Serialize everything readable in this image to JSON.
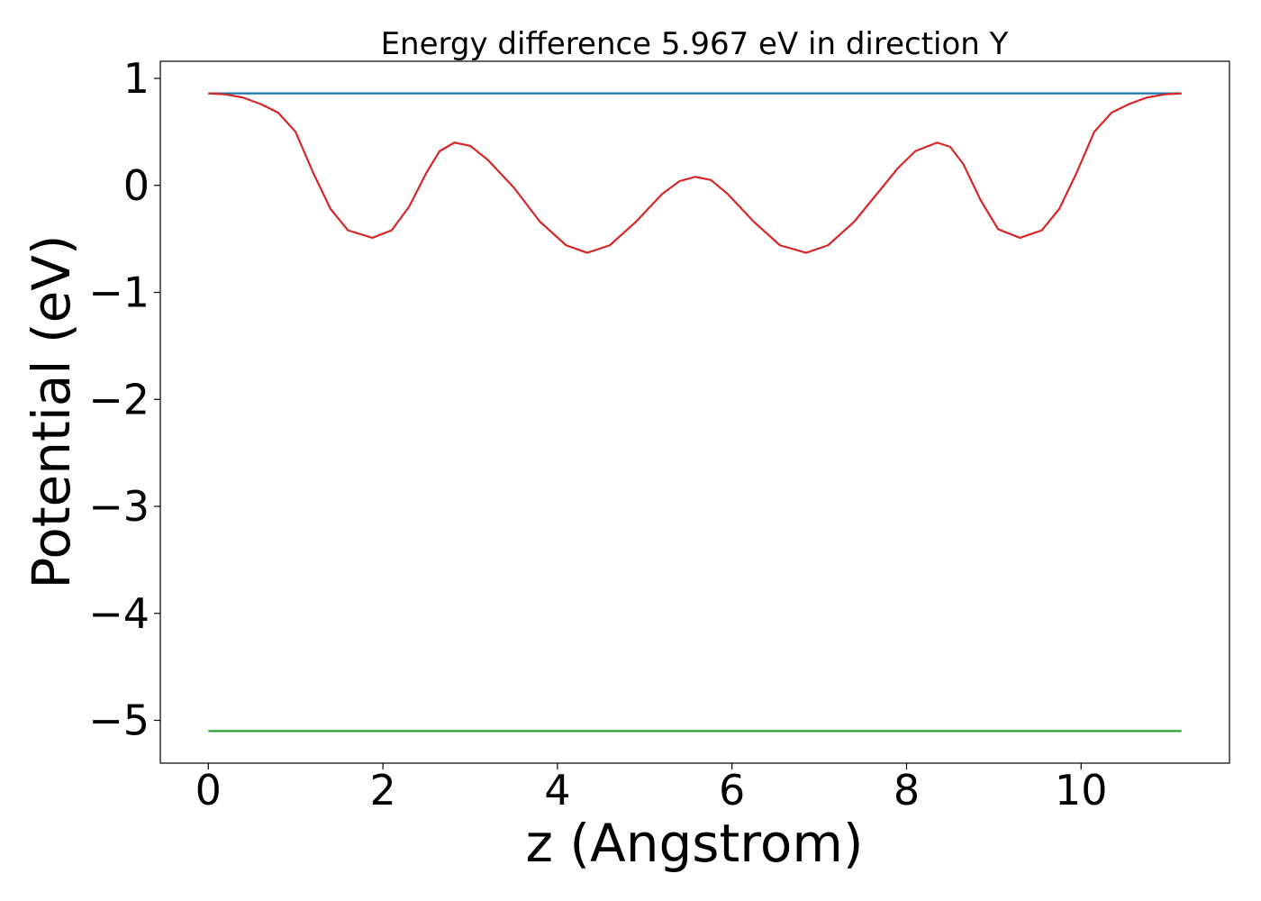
{
  "chart_data": {
    "type": "line",
    "title": "Energy difference 5.967 eV in direction Y",
    "xlabel": "z (Angstrom)",
    "ylabel": "Potential (eV)",
    "xlim": [
      -0.55,
      11.7
    ],
    "ylim": [
      -5.4,
      1.16
    ],
    "xticks": [
      0,
      2,
      4,
      6,
      8,
      10
    ],
    "yticks": [
      1,
      0,
      -1,
      -2,
      -3,
      -4,
      -5
    ],
    "xtick_labels": [
      "0",
      "2",
      "4",
      "6",
      "8",
      "10"
    ],
    "ytick_labels": [
      "1",
      "0",
      "−1",
      "−2",
      "−3",
      "−4",
      "−5"
    ],
    "grid": false,
    "legend": "none",
    "series": [
      {
        "color": "#1f77b4",
        "x": [
          0,
          11.15
        ],
        "y": [
          0.86,
          0.86
        ]
      },
      {
        "color": "#2ca02c",
        "x": [
          0,
          11.15
        ],
        "y": [
          -5.1,
          -5.1
        ]
      },
      {
        "color": "#d62728",
        "x": [
          0,
          0.2,
          0.4,
          0.6,
          0.8,
          1.0,
          1.2,
          1.4,
          1.6,
          1.88,
          2.1,
          2.3,
          2.5,
          2.65,
          2.82,
          3.0,
          3.2,
          3.5,
          3.8,
          4.1,
          4.34,
          4.6,
          4.9,
          5.2,
          5.4,
          5.58,
          5.76,
          5.95,
          6.25,
          6.55,
          6.85,
          7.1,
          7.4,
          7.7,
          7.9,
          8.1,
          8.35,
          8.5,
          8.65,
          8.85,
          9.05,
          9.3,
          9.55,
          9.75,
          9.95,
          10.15,
          10.35,
          10.55,
          10.75,
          10.95,
          11.15
        ],
        "y": [
          0.86,
          0.85,
          0.82,
          0.76,
          0.68,
          0.5,
          0.12,
          -0.22,
          -0.42,
          -0.49,
          -0.42,
          -0.2,
          0.12,
          0.32,
          0.4,
          0.37,
          0.24,
          -0.02,
          -0.34,
          -0.56,
          -0.63,
          -0.56,
          -0.34,
          -0.08,
          0.04,
          0.08,
          0.05,
          -0.08,
          -0.34,
          -0.56,
          -0.63,
          -0.56,
          -0.34,
          -0.04,
          0.16,
          0.32,
          0.4,
          0.36,
          0.2,
          -0.14,
          -0.41,
          -0.49,
          -0.42,
          -0.22,
          0.12,
          0.5,
          0.68,
          0.76,
          0.82,
          0.85,
          0.86
        ]
      }
    ]
  }
}
